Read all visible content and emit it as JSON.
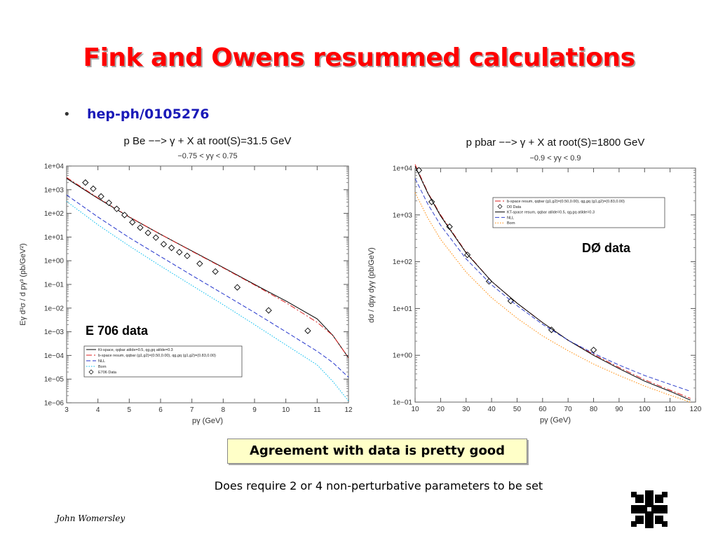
{
  "slide": {
    "title": "Fink and Owens resummed calculations",
    "bullet": "hep-ph/0105276",
    "callout": "Agreement with data is pretty good",
    "note": "Does require 2 or 4 non-perturbative parameters to be set",
    "author": "John Womersley",
    "logo_icon": "fermilab-logo-icon"
  },
  "chart_data": [
    {
      "type": "line",
      "title": "p Be −−> γ + X at root(S)=31.5 GeV",
      "subtitle": "−0.75 < yγ < 0.75",
      "xlabel": "pγ (GeV)",
      "ylabel": "Eγ d³σ / d pγ³ (pb/GeV²)",
      "xlim": [
        3,
        12
      ],
      "ylim": [
        1e-06,
        10000.0
      ],
      "yscale": "log",
      "xticks": [
        "3",
        "4",
        "5",
        "6",
        "7",
        "8",
        "9",
        "10",
        "11",
        "12"
      ],
      "yticks": [
        "1e−06",
        "1e−05",
        "1e−04",
        "1e−03",
        "1e−02",
        "1e−01",
        "1e+00",
        "1e+01",
        "1e+02",
        "1e+03",
        "1e+04"
      ],
      "annotation": "E 706 data",
      "legend_position": "bottom-left",
      "series": [
        {
          "name": "Kt-space, qqbar atilde=0.5, qg,gq atilde=0.3",
          "style": "solid",
          "color": "#000000",
          "x": [
            3,
            4,
            5,
            6,
            7,
            8,
            9,
            10,
            11,
            11.5,
            12
          ],
          "y": [
            3000,
            430,
            70,
            13,
            2.6,
            0.52,
            0.1,
            0.02,
            0.0035,
            0.0007,
            8e-05
          ]
        },
        {
          "name": "b-space resum, qqbar (g1,g2)=(0.50,0.00), qg,gq (g1,g2)=(0.83,0.00)",
          "style": "dashdot",
          "color": "#dd2222",
          "x": [
            3,
            4,
            5,
            6,
            7,
            8,
            9,
            10,
            11,
            11.5,
            12
          ],
          "y": [
            3300,
            450,
            72,
            13,
            2.5,
            0.5,
            0.095,
            0.017,
            0.0025,
            0.0007,
            8e-05
          ]
        },
        {
          "name": "NLL",
          "style": "dash",
          "color": "#2233cc",
          "x": [
            3,
            4,
            5,
            6,
            7,
            8,
            9,
            10,
            11,
            11.5,
            12
          ],
          "y": [
            600,
            70,
            9.5,
            1.5,
            0.24,
            0.04,
            0.0065,
            0.001,
            0.00015,
            5e-05,
            1.2e-05
          ]
        },
        {
          "name": "Born",
          "style": "dot",
          "color": "#00bbee",
          "x": [
            3,
            4,
            5,
            6,
            7,
            8,
            9,
            10,
            11,
            11.5,
            12
          ],
          "y": [
            320,
            33,
            4.2,
            0.6,
            0.09,
            0.014,
            0.002,
            0.00028,
            4e-05,
            8e-06,
            1.2e-06
          ]
        },
        {
          "name": "E706 Data",
          "style": "marker",
          "color": "#000000",
          "x": [
            3.6,
            3.85,
            4.1,
            4.35,
            4.6,
            4.85,
            5.1,
            5.35,
            5.6,
            5.85,
            6.1,
            6.35,
            6.6,
            6.85,
            7.25,
            7.75,
            8.45,
            9.45,
            10.7
          ],
          "y": [
            2000,
            1100,
            520,
            280,
            155,
            85,
            42,
            25,
            15,
            9.5,
            5,
            3.5,
            2.3,
            1.6,
            0.75,
            0.35,
            0.075,
            0.008,
            0.0011
          ]
        }
      ]
    },
    {
      "type": "line",
      "title": "p pbar −−> γ + X at root(S)=1800 GeV",
      "subtitle": "−0.9 < yγ < 0.9",
      "xlabel": "pγ (GeV)",
      "ylabel": "dσ / dpγ dyγ (pb/GeV)",
      "xlim": [
        10,
        120
      ],
      "ylim": [
        0.1,
        10000
      ],
      "yscale": "log",
      "xticks": [
        "10",
        "20",
        "30",
        "40",
        "50",
        "60",
        "70",
        "80",
        "90",
        "100",
        "110",
        "120"
      ],
      "yticks": [
        "1e−01",
        "1e+00",
        "1e+01",
        "1e+02",
        "1e+03",
        "1e+04"
      ],
      "annotation": "DØ data",
      "legend_position": "top-right",
      "series": [
        {
          "name": "b-space resum, qqbar (g1,g2)=(0.50,0.00), qg,gq (g1,g2)=(0.83,0.00)",
          "style": "dashdot",
          "color": "#dd2222",
          "x": [
            10,
            15,
            20,
            30,
            40,
            50,
            60,
            70,
            80,
            90,
            100,
            110,
            118
          ],
          "y": [
            12000,
            3000,
            1000,
            160,
            38,
            13,
            5,
            2.1,
            1.05,
            0.55,
            0.3,
            0.18,
            0.12
          ]
        },
        {
          "name": "D0 Data",
          "style": "marker",
          "color": "#000000",
          "x": [
            11.5,
            16.5,
            23.5,
            30.5,
            39,
            47.5,
            63.5,
            80
          ],
          "y": [
            9000,
            1900,
            560,
            140,
            38,
            14.5,
            3.5,
            1.3
          ]
        },
        {
          "name": "KT-space resum, qqbar atilde=0.5, qg,gq atilde=0.3",
          "style": "solid",
          "color": "#000000",
          "x": [
            10,
            15,
            20,
            30,
            40,
            50,
            60,
            70,
            80,
            90,
            100,
            110,
            118
          ],
          "y": [
            11000,
            2900,
            950,
            155,
            38,
            13,
            5,
            2.1,
            1.0,
            0.52,
            0.28,
            0.17,
            0.11
          ]
        },
        {
          "name": "NLL",
          "style": "dash",
          "color": "#3344cc",
          "x": [
            10,
            15,
            20,
            30,
            40,
            50,
            60,
            70,
            80,
            90,
            100,
            110,
            118
          ],
          "y": [
            6000,
            1700,
            600,
            115,
            32,
            11.5,
            4.6,
            2.1,
            1.1,
            0.62,
            0.37,
            0.24,
            0.17
          ]
        },
        {
          "name": "Born",
          "style": "dot",
          "color": "#ff8800",
          "x": [
            10,
            15,
            20,
            30,
            40,
            50,
            60,
            70,
            80,
            90,
            100,
            110,
            118
          ],
          "y": [
            3000,
            850,
            300,
            60,
            17,
            6.2,
            2.6,
            1.25,
            0.65,
            0.37,
            0.22,
            0.14,
            0.1
          ]
        }
      ]
    }
  ]
}
